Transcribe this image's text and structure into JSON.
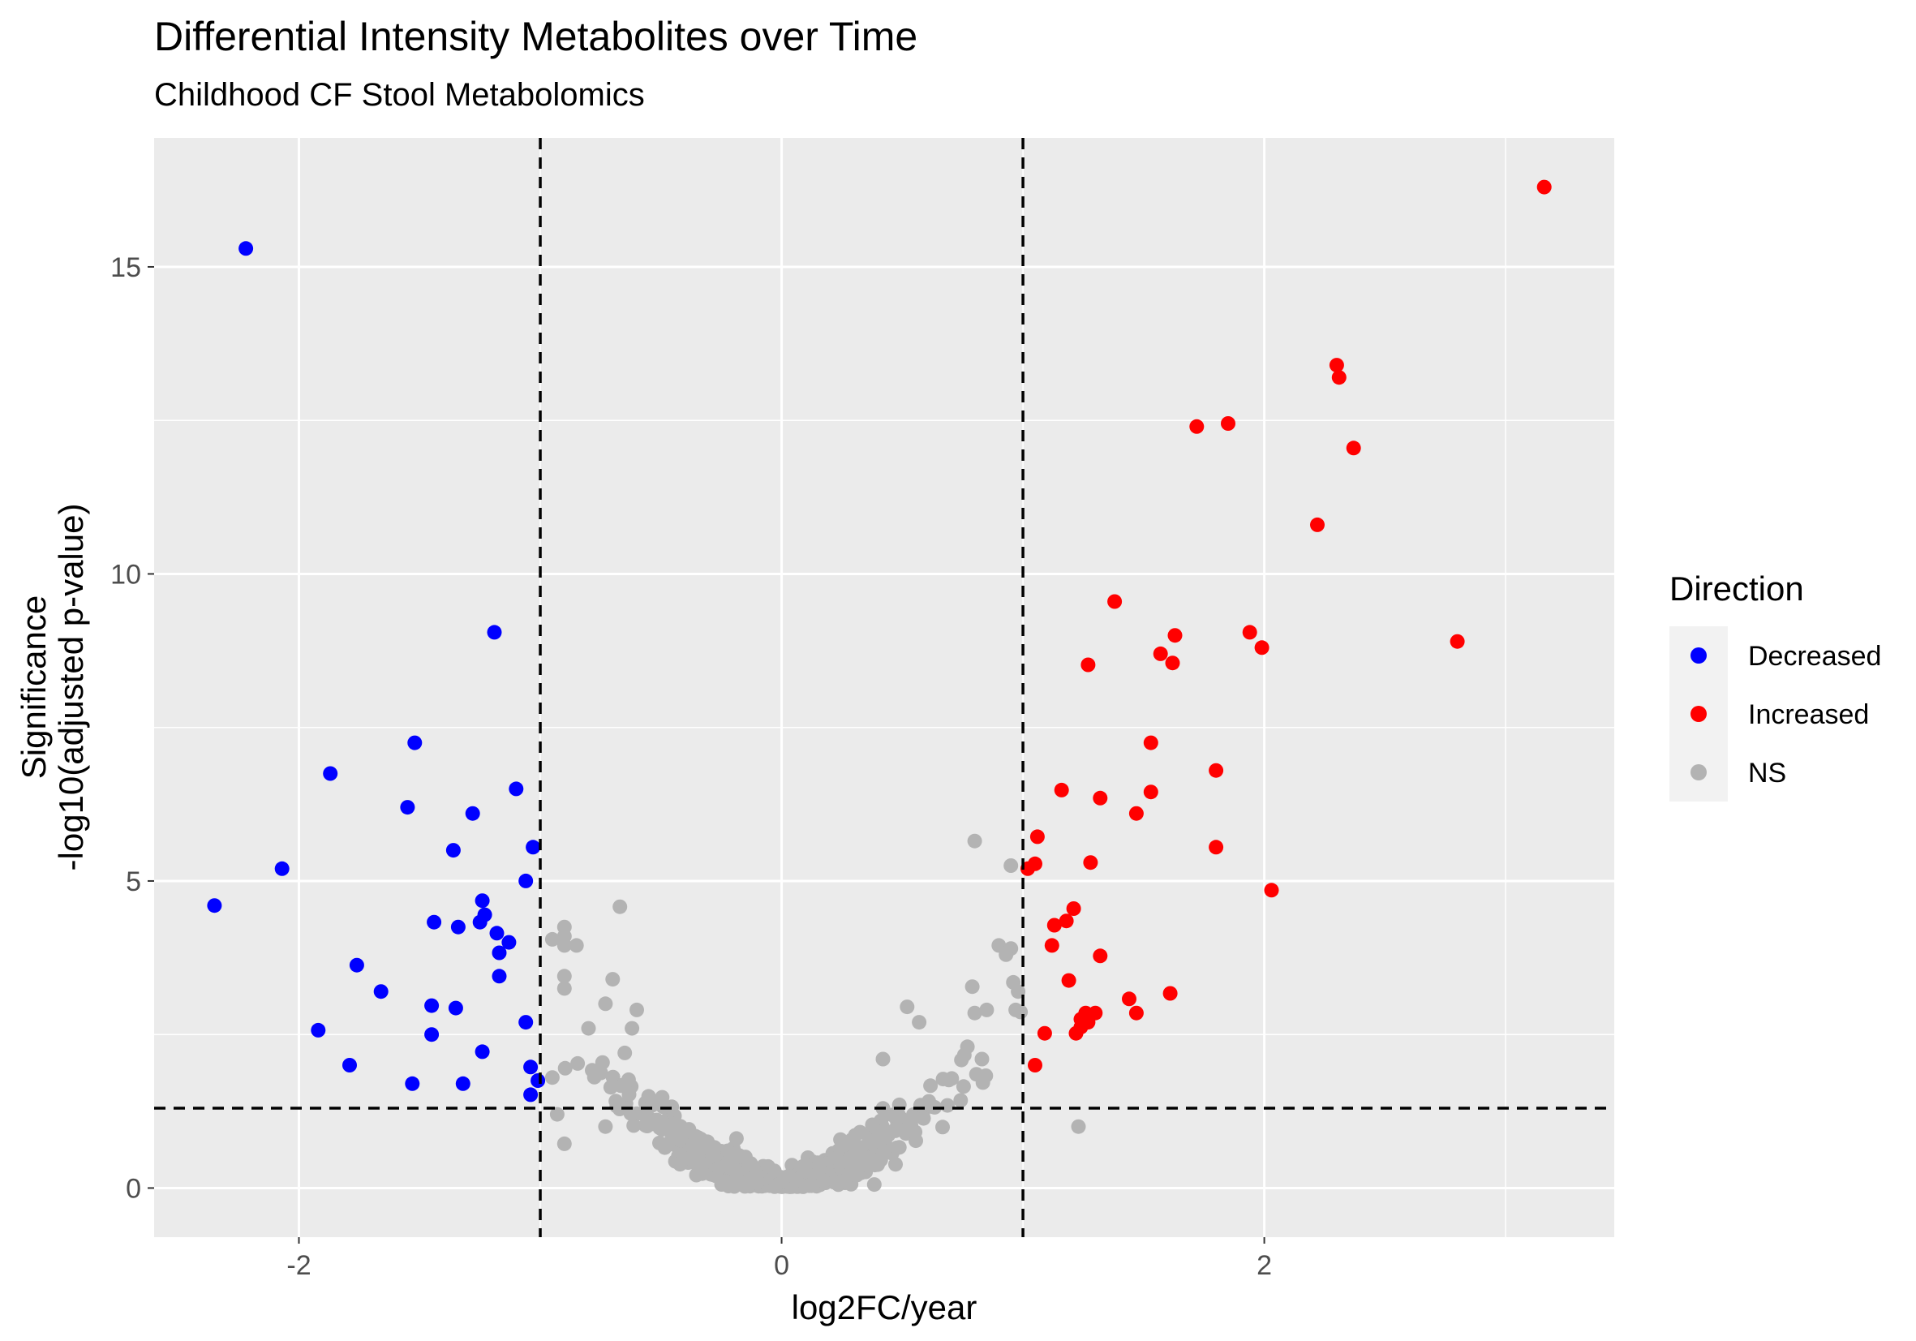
{
  "chart_data": {
    "type": "scatter",
    "title": "Differential Intensity Metabolites over Time",
    "subtitle": "Childhood CF Stool Metabolomics",
    "xlabel": "log2FC/year",
    "ylabel_line1": "Significance",
    "ylabel_line2": "-log10(adjusted p-value)",
    "xlim": [
      -2.6,
      3.45
    ],
    "ylim": [
      -0.8,
      17.1
    ],
    "x_ticks": [
      -2,
      0,
      2
    ],
    "x_tick_labels": [
      "-2",
      "0",
      "2"
    ],
    "y_ticks": [
      0,
      5,
      10,
      15
    ],
    "y_tick_labels": [
      "0",
      "5",
      "10",
      "15"
    ],
    "grid": true,
    "thresholds": {
      "x": [
        -1,
        1
      ],
      "y": 1.3
    },
    "legend": {
      "title": "Direction",
      "placement": "right",
      "entries": [
        {
          "label": "Decreased",
          "color": "#0000ff"
        },
        {
          "label": "Increased",
          "color": "#ff0000"
        },
        {
          "label": "NS",
          "color": "#b3b3b3"
        }
      ]
    },
    "series": [
      {
        "name": "Decreased",
        "color": "#0000ff",
        "points": [
          [
            -2.22,
            15.3
          ],
          [
            -1.19,
            9.05
          ],
          [
            -1.52,
            7.25
          ],
          [
            -1.87,
            6.75
          ],
          [
            -1.1,
            6.5
          ],
          [
            -1.55,
            6.2
          ],
          [
            -1.28,
            6.1
          ],
          [
            -1.36,
            5.5
          ],
          [
            -1.03,
            5.55
          ],
          [
            -2.07,
            5.2
          ],
          [
            -1.06,
            5.0
          ],
          [
            -2.35,
            4.6
          ],
          [
            -1.24,
            4.68
          ],
          [
            -1.44,
            4.33
          ],
          [
            -1.23,
            4.45
          ],
          [
            -1.25,
            4.33
          ],
          [
            -1.34,
            4.25
          ],
          [
            -1.18,
            4.15
          ],
          [
            -1.13,
            4.0
          ],
          [
            -1.17,
            3.83
          ],
          [
            -1.76,
            3.63
          ],
          [
            -1.17,
            3.45
          ],
          [
            -1.66,
            3.2
          ],
          [
            -1.45,
            2.97
          ],
          [
            -1.35,
            2.93
          ],
          [
            -1.06,
            2.7
          ],
          [
            -1.92,
            2.57
          ],
          [
            -1.45,
            2.5
          ],
          [
            -1.24,
            2.22
          ],
          [
            -1.79,
            2.0
          ],
          [
            -1.04,
            1.97
          ],
          [
            -1.01,
            1.75
          ],
          [
            -1.53,
            1.7
          ],
          [
            -1.32,
            1.7
          ],
          [
            -1.04,
            1.52
          ]
        ]
      },
      {
        "name": "Increased",
        "color": "#ff0000",
        "points": [
          [
            3.16,
            16.3
          ],
          [
            2.3,
            13.4
          ],
          [
            2.31,
            13.2
          ],
          [
            1.85,
            12.45
          ],
          [
            1.72,
            12.4
          ],
          [
            2.37,
            12.05
          ],
          [
            2.22,
            10.8
          ],
          [
            1.38,
            9.55
          ],
          [
            1.94,
            9.05
          ],
          [
            1.63,
            9.0
          ],
          [
            2.8,
            8.9
          ],
          [
            1.99,
            8.8
          ],
          [
            1.57,
            8.7
          ],
          [
            1.27,
            8.52
          ],
          [
            1.62,
            8.55
          ],
          [
            1.53,
            7.25
          ],
          [
            1.8,
            6.8
          ],
          [
            1.16,
            6.48
          ],
          [
            1.53,
            6.45
          ],
          [
            1.32,
            6.35
          ],
          [
            1.47,
            6.1
          ],
          [
            1.06,
            5.72
          ],
          [
            1.8,
            5.55
          ],
          [
            1.28,
            5.3
          ],
          [
            1.05,
            5.28
          ],
          [
            1.02,
            5.2
          ],
          [
            2.03,
            4.85
          ],
          [
            1.21,
            4.55
          ],
          [
            1.18,
            4.35
          ],
          [
            1.13,
            4.28
          ],
          [
            1.12,
            3.95
          ],
          [
            1.32,
            3.78
          ],
          [
            1.19,
            3.38
          ],
          [
            1.61,
            3.17
          ],
          [
            1.44,
            3.08
          ],
          [
            1.26,
            2.85
          ],
          [
            1.3,
            2.85
          ],
          [
            1.47,
            2.85
          ],
          [
            1.24,
            2.75
          ],
          [
            1.27,
            2.7
          ],
          [
            1.24,
            2.62
          ],
          [
            1.22,
            2.52
          ],
          [
            1.09,
            2.52
          ],
          [
            1.05,
            2.0
          ]
        ]
      },
      {
        "name": "NS",
        "color": "#b3b3b3",
        "generator": "volcano",
        "count": 560,
        "extra_points": [
          [
            0.8,
            5.65
          ],
          [
            0.95,
            5.25
          ],
          [
            -0.67,
            4.58
          ],
          [
            -0.9,
            4.25
          ],
          [
            -0.9,
            4.1
          ],
          [
            -0.95,
            4.05
          ],
          [
            -0.9,
            3.95
          ],
          [
            -0.85,
            3.95
          ],
          [
            0.9,
            3.95
          ],
          [
            0.95,
            3.9
          ],
          [
            0.93,
            3.8
          ],
          [
            -0.9,
            3.45
          ],
          [
            0.96,
            3.35
          ],
          [
            -0.7,
            3.4
          ],
          [
            -0.73,
            3.0
          ],
          [
            0.79,
            3.28
          ],
          [
            0.98,
            3.2
          ],
          [
            -0.9,
            3.25
          ],
          [
            -0.6,
            2.9
          ],
          [
            0.8,
            2.85
          ],
          [
            0.85,
            2.9
          ],
          [
            0.97,
            2.9
          ],
          [
            -0.8,
            2.6
          ],
          [
            0.52,
            2.95
          ],
          [
            0.57,
            2.7
          ],
          [
            -0.62,
            2.6
          ],
          [
            0.83,
            2.1
          ],
          [
            0.42,
            2.1
          ],
          [
            -0.95,
            1.8
          ],
          [
            1.23,
            1.0
          ],
          [
            -0.9,
            0.72
          ],
          [
            -0.93,
            1.2
          ],
          [
            -0.73,
            1.0
          ],
          [
            0.77,
            2.3
          ],
          [
            -0.65,
            2.2
          ]
        ]
      }
    ]
  }
}
